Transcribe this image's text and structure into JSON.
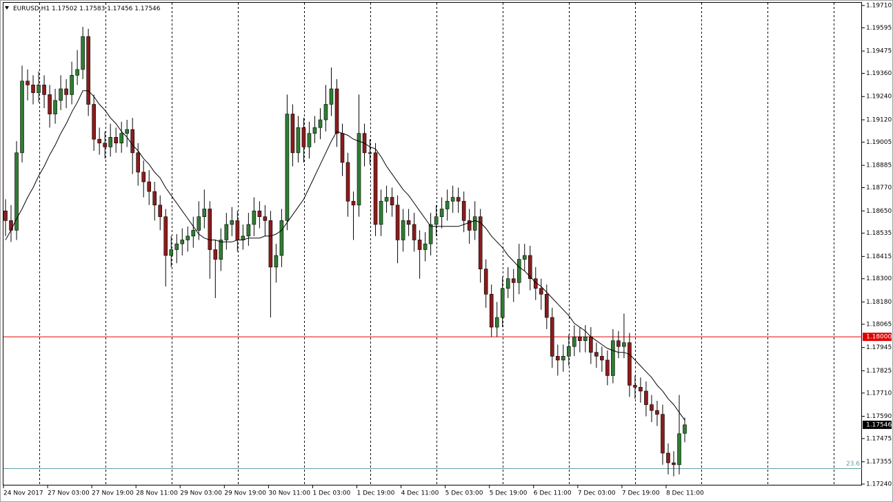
{
  "chart_data": {
    "type": "candlestick",
    "title": "EURUSD,H1",
    "up_color": "#2f7d32",
    "down_color": "#8b1c1c",
    "wick_color": "#000000",
    "ylim": [
      1.1724,
      1.1971
    ],
    "yticks": [
      {
        "value": 1.1971,
        "label": "1.19710"
      },
      {
        "value": 1.19595,
        "label": "1.19595"
      },
      {
        "value": 1.19475,
        "label": "1.19475"
      },
      {
        "value": 1.1936,
        "label": "1.19360"
      },
      {
        "value": 1.1924,
        "label": "1.19240"
      },
      {
        "value": 1.1912,
        "label": "1.19120"
      },
      {
        "value": 1.19005,
        "label": "1.19005"
      },
      {
        "value": 1.18885,
        "label": "1.18885"
      },
      {
        "value": 1.1877,
        "label": "1.18770"
      },
      {
        "value": 1.1865,
        "label": "1.18650"
      },
      {
        "value": 1.18535,
        "label": "1.18535"
      },
      {
        "value": 1.18415,
        "label": "1.18415"
      },
      {
        "value": 1.183,
        "label": "1.18300"
      },
      {
        "value": 1.1818,
        "label": "1.18180"
      },
      {
        "value": 1.18065,
        "label": "1.18065"
      },
      {
        "value": 1.17945,
        "label": "1.17945"
      },
      {
        "value": 1.17825,
        "label": "1.17825"
      },
      {
        "value": 1.1771,
        "label": "1.17710"
      },
      {
        "value": 1.1759,
        "label": "1.17590"
      },
      {
        "value": 1.17475,
        "label": "1.17475"
      },
      {
        "value": 1.17355,
        "label": "1.17355"
      },
      {
        "value": 1.1724,
        "label": "1.17240"
      }
    ],
    "categories": [
      "24 Nov 2017",
      null,
      null,
      null,
      null,
      null,
      null,
      null,
      "27 Nov 03:00",
      null,
      null,
      null,
      null,
      null,
      null,
      null,
      "27 Nov 19:00",
      null,
      null,
      null,
      null,
      null,
      null,
      null,
      "28 Nov 11:00",
      null,
      null,
      null,
      null,
      null,
      null,
      null,
      "29 Nov 03:00",
      null,
      null,
      null,
      null,
      null,
      null,
      null,
      "29 Nov 19:00",
      null,
      null,
      null,
      null,
      null,
      null,
      null,
      "30 Nov 11:00",
      null,
      null,
      null,
      null,
      null,
      null,
      null,
      "1 Dec 03:00",
      null,
      null,
      null,
      null,
      null,
      null,
      null,
      "1 Dec 19:00",
      null,
      null,
      null,
      null,
      null,
      null,
      null,
      "4 Dec 11:00",
      null,
      null,
      null,
      null,
      null,
      null,
      null,
      "5 Dec 03:00",
      null,
      null,
      null,
      null,
      null,
      null,
      null,
      "5 Dec 19:00",
      null,
      null,
      null,
      null,
      null,
      null,
      null,
      "6 Dec 11:00",
      null,
      null,
      null,
      null,
      null,
      null,
      null,
      "7 Dec 03:00",
      null,
      null,
      null,
      null,
      null,
      null,
      null,
      "7 Dec 19:00",
      null,
      null,
      null,
      null,
      null,
      null,
      null,
      "8 Dec 11:00",
      null,
      null,
      null
    ],
    "ohlc": [
      [
        1.1865,
        1.1871,
        1.1852,
        1.186
      ],
      [
        1.186,
        1.1868,
        1.1849,
        1.1855
      ],
      [
        1.1855,
        1.1901,
        1.185,
        1.1895
      ],
      [
        1.1895,
        1.194,
        1.189,
        1.1932
      ],
      [
        1.1932,
        1.1938,
        1.1922,
        1.193
      ],
      [
        1.193,
        1.1935,
        1.192,
        1.1926
      ],
      [
        1.1926,
        1.1937,
        1.1921,
        1.193
      ],
      [
        1.193,
        1.1935,
        1.1918,
        1.1925
      ],
      [
        1.1925,
        1.193,
        1.1908,
        1.1915
      ],
      [
        1.1915,
        1.1928,
        1.191,
        1.1922
      ],
      [
        1.1922,
        1.1935,
        1.1917,
        1.1928
      ],
      [
        1.1928,
        1.1933,
        1.1918,
        1.1925
      ],
      [
        1.1925,
        1.1942,
        1.192,
        1.1935
      ],
      [
        1.1935,
        1.1948,
        1.193,
        1.1938
      ],
      [
        1.1938,
        1.196,
        1.1933,
        1.1955
      ],
      [
        1.1955,
        1.1959,
        1.1914,
        1.192
      ],
      [
        1.192,
        1.1925,
        1.1896,
        1.1902
      ],
      [
        1.1902,
        1.1908,
        1.1894,
        1.19
      ],
      [
        1.19,
        1.1906,
        1.1892,
        1.1898
      ],
      [
        1.1898,
        1.191,
        1.1893,
        1.1903
      ],
      [
        1.1903,
        1.1908,
        1.1895,
        1.19
      ],
      [
        1.19,
        1.1911,
        1.1895,
        1.1905
      ],
      [
        1.1905,
        1.1912,
        1.1898,
        1.1907
      ],
      [
        1.1907,
        1.1913,
        1.1884,
        1.1895
      ],
      [
        1.1895,
        1.19,
        1.1878,
        1.1885
      ],
      [
        1.1885,
        1.1891,
        1.1872,
        1.188
      ],
      [
        1.188,
        1.1886,
        1.1868,
        1.1875
      ],
      [
        1.1875,
        1.188,
        1.186,
        1.1868
      ],
      [
        1.1868,
        1.1873,
        1.1855,
        1.1862
      ],
      [
        1.1862,
        1.1866,
        1.1826,
        1.1842
      ],
      [
        1.1842,
        1.1852,
        1.1836,
        1.1845
      ],
      [
        1.1845,
        1.1853,
        1.1838,
        1.1848
      ],
      [
        1.1848,
        1.1856,
        1.1842,
        1.185
      ],
      [
        1.185,
        1.1857,
        1.1844,
        1.1852
      ],
      [
        1.1852,
        1.1862,
        1.1846,
        1.1855
      ],
      [
        1.1855,
        1.187,
        1.185,
        1.1862
      ],
      [
        1.1862,
        1.1876,
        1.1856,
        1.1866
      ],
      [
        1.1866,
        1.187,
        1.183,
        1.1845
      ],
      [
        1.1845,
        1.185,
        1.182,
        1.184
      ],
      [
        1.184,
        1.1856,
        1.1834,
        1.185
      ],
      [
        1.185,
        1.1864,
        1.1845,
        1.1858
      ],
      [
        1.1858,
        1.1867,
        1.1852,
        1.186
      ],
      [
        1.186,
        1.1865,
        1.1844,
        1.185
      ],
      [
        1.185,
        1.1858,
        1.1845,
        1.1852
      ],
      [
        1.1852,
        1.1864,
        1.1847,
        1.1858
      ],
      [
        1.1858,
        1.1872,
        1.1852,
        1.1865
      ],
      [
        1.1865,
        1.187,
        1.1856,
        1.1862
      ],
      [
        1.1862,
        1.1868,
        1.1852,
        1.186
      ],
      [
        1.186,
        1.1865,
        1.181,
        1.1836
      ],
      [
        1.1836,
        1.1848,
        1.1828,
        1.1842
      ],
      [
        1.1842,
        1.1866,
        1.1836,
        1.186
      ],
      [
        1.186,
        1.1925,
        1.1855,
        1.1915
      ],
      [
        1.1915,
        1.192,
        1.1888,
        1.1895
      ],
      [
        1.1895,
        1.1914,
        1.189,
        1.1908
      ],
      [
        1.1908,
        1.1913,
        1.189,
        1.1898
      ],
      [
        1.1898,
        1.1911,
        1.1892,
        1.1905
      ],
      [
        1.1905,
        1.1914,
        1.19,
        1.1908
      ],
      [
        1.1908,
        1.1918,
        1.1902,
        1.1912
      ],
      [
        1.1912,
        1.193,
        1.1906,
        1.192
      ],
      [
        1.192,
        1.1939,
        1.1914,
        1.1928
      ],
      [
        1.1928,
        1.1933,
        1.1898,
        1.1905
      ],
      [
        1.1905,
        1.191,
        1.1883,
        1.189
      ],
      [
        1.189,
        1.1895,
        1.1862,
        1.187
      ],
      [
        1.187,
        1.1875,
        1.185,
        1.1868
      ],
      [
        1.1868,
        1.1925,
        1.1862,
        1.1905
      ],
      [
        1.1905,
        1.191,
        1.1888,
        1.1895
      ],
      [
        1.1895,
        1.1902,
        1.1889,
        1.1895
      ],
      [
        1.1895,
        1.19,
        1.1852,
        1.1858
      ],
      [
        1.1858,
        1.1876,
        1.1852,
        1.187
      ],
      [
        1.187,
        1.1878,
        1.1864,
        1.1872
      ],
      [
        1.1872,
        1.1877,
        1.1862,
        1.1868
      ],
      [
        1.1868,
        1.1873,
        1.1838,
        1.185
      ],
      [
        1.185,
        1.1866,
        1.1844,
        1.186
      ],
      [
        1.186,
        1.1866,
        1.1852,
        1.1858
      ],
      [
        1.1858,
        1.1864,
        1.1844,
        1.185
      ],
      [
        1.185,
        1.1855,
        1.183,
        1.1845
      ],
      [
        1.1845,
        1.1854,
        1.1839,
        1.1848
      ],
      [
        1.1848,
        1.1864,
        1.1842,
        1.1858
      ],
      [
        1.1858,
        1.1868,
        1.1852,
        1.1862
      ],
      [
        1.1862,
        1.1872,
        1.1856,
        1.1866
      ],
      [
        1.1866,
        1.1876,
        1.186,
        1.187
      ],
      [
        1.187,
        1.1878,
        1.1864,
        1.1872
      ],
      [
        1.1872,
        1.1877,
        1.1864,
        1.187
      ],
      [
        1.187,
        1.1875,
        1.1854,
        1.186
      ],
      [
        1.186,
        1.1866,
        1.1848,
        1.1855
      ],
      [
        1.1855,
        1.187,
        1.185,
        1.1862
      ],
      [
        1.1862,
        1.1866,
        1.1828,
        1.1835
      ],
      [
        1.1835,
        1.184,
        1.1815,
        1.1822
      ],
      [
        1.1822,
        1.1827,
        1.18,
        1.1805
      ],
      [
        1.1805,
        1.1818,
        1.18,
        1.181
      ],
      [
        1.181,
        1.1831,
        1.1805,
        1.1825
      ],
      [
        1.1825,
        1.1836,
        1.182,
        1.183
      ],
      [
        1.183,
        1.1835,
        1.1818,
        1.1828
      ],
      [
        1.1828,
        1.1848,
        1.1822,
        1.184
      ],
      [
        1.184,
        1.1848,
        1.1834,
        1.1842
      ],
      [
        1.1842,
        1.1847,
        1.1824,
        1.183
      ],
      [
        1.183,
        1.1836,
        1.1819,
        1.1825
      ],
      [
        1.1825,
        1.183,
        1.1814,
        1.1822
      ],
      [
        1.1822,
        1.1827,
        1.1804,
        1.181
      ],
      [
        1.181,
        1.1815,
        1.1784,
        1.179
      ],
      [
        1.179,
        1.1796,
        1.178,
        1.1788
      ],
      [
        1.1788,
        1.1796,
        1.1782,
        1.179
      ],
      [
        1.179,
        1.1801,
        1.1785,
        1.1795
      ],
      [
        1.1795,
        1.1806,
        1.179,
        1.18
      ],
      [
        1.18,
        1.1805,
        1.1792,
        1.1798
      ],
      [
        1.1798,
        1.1806,
        1.1792,
        1.18
      ],
      [
        1.18,
        1.1805,
        1.1786,
        1.1792
      ],
      [
        1.1792,
        1.1797,
        1.1784,
        1.179
      ],
      [
        1.179,
        1.1795,
        1.1782,
        1.1788
      ],
      [
        1.1788,
        1.1793,
        1.1775,
        1.178
      ],
      [
        1.178,
        1.1804,
        1.1776,
        1.1798
      ],
      [
        1.1798,
        1.1803,
        1.1789,
        1.1795
      ],
      [
        1.1795,
        1.1812,
        1.1789,
        1.1797
      ],
      [
        1.1797,
        1.1802,
        1.1769,
        1.1775
      ],
      [
        1.1775,
        1.178,
        1.1768,
        1.1774
      ],
      [
        1.1774,
        1.1779,
        1.1766,
        1.1772
      ],
      [
        1.1772,
        1.1777,
        1.1759,
        1.1765
      ],
      [
        1.1765,
        1.177,
        1.1756,
        1.1762
      ],
      [
        1.1762,
        1.1767,
        1.1754,
        1.176
      ],
      [
        1.176,
        1.1765,
        1.1734,
        1.174
      ],
      [
        1.174,
        1.1745,
        1.1729,
        1.1735
      ],
      [
        1.1735,
        1.1741,
        1.1728,
        1.1734
      ],
      [
        1.1734,
        1.177,
        1.1729,
        1.175
      ],
      [
        1.17502,
        1.17583,
        1.17456,
        1.17546
      ]
    ],
    "ma": {
      "color": "#000000",
      "values": [
        1.185,
        1.1855,
        1.1861,
        1.1866,
        1.1872,
        1.1877,
        1.1883,
        1.1888,
        1.1894,
        1.1899,
        1.1905,
        1.191,
        1.1916,
        1.1921,
        1.1927,
        1.1927,
        1.1924,
        1.192,
        1.1917,
        1.1913,
        1.191,
        1.1906,
        1.1903,
        1.1899,
        1.1896,
        1.1892,
        1.1889,
        1.1885,
        1.1882,
        1.1877,
        1.1873,
        1.1869,
        1.1865,
        1.1861,
        1.1857,
        1.1853,
        1.1851,
        1.185,
        1.185,
        1.1849,
        1.1849,
        1.1849,
        1.185,
        1.185,
        1.1851,
        1.1851,
        1.1851,
        1.1852,
        1.1852,
        1.1853,
        1.1855,
        1.1859,
        1.1863,
        1.1867,
        1.1871,
        1.1877,
        1.1883,
        1.1889,
        1.1895,
        1.1901,
        1.1906,
        1.1905,
        1.1904,
        1.1902,
        1.1901,
        1.19,
        1.1898,
        1.1897,
        1.1893,
        1.1888,
        1.1884,
        1.188,
        1.1876,
        1.1873,
        1.1869,
        1.1865,
        1.1861,
        1.1857,
        1.1857,
        1.1857,
        1.1857,
        1.1857,
        1.1857,
        1.1858,
        1.1859,
        1.186,
        1.1859,
        1.1856,
        1.1852,
        1.1849,
        1.1846,
        1.1842,
        1.1839,
        1.1836,
        1.1834,
        1.1831,
        1.1828,
        1.1826,
        1.1823,
        1.182,
        1.1817,
        1.1814,
        1.1811,
        1.1807,
        1.1805,
        1.1803,
        1.18,
        1.1798,
        1.1796,
        1.1794,
        1.1793,
        1.1792,
        1.1792,
        1.1791,
        1.1788,
        1.1785,
        1.1782,
        1.1779,
        1.1775,
        1.1772,
        1.1768,
        1.1765,
        1.1761,
        1.1757
      ]
    },
    "hlines": [
      {
        "value": 1.18,
        "label": "1.18000",
        "color": "#e00000"
      },
      {
        "value": 1.1732,
        "label": "23.6",
        "color": "#5f9ea0"
      }
    ]
  }
}
